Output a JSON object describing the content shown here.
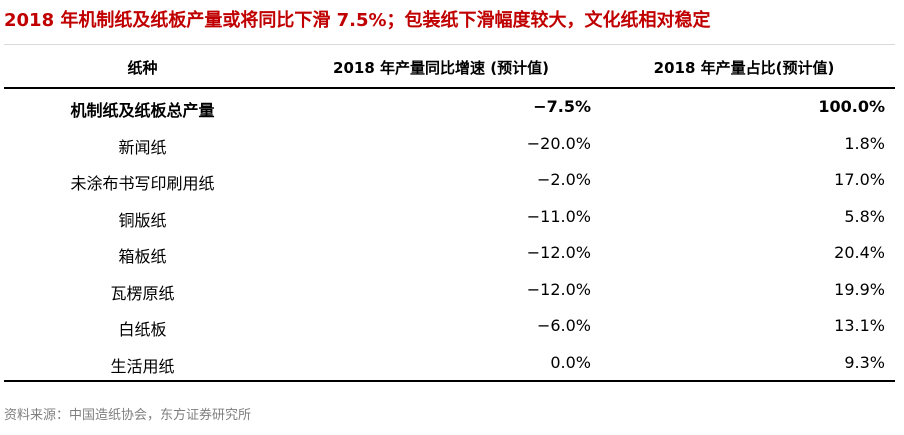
{
  "title": "2018 年机制纸及纸板产量或将同比下滑 7.5%；包装纸下滑幅度较大，文化纸相对稳定",
  "colors": {
    "title": "#c00000",
    "rule": "#000000",
    "source": "#7f7f7f"
  },
  "table": {
    "headers": {
      "name": "纸种",
      "growth": "2018 年产量同比增速 (预计值)",
      "share": "2018 年产量占比(预计值)"
    },
    "rows": [
      {
        "name": "机制纸及纸板总产量",
        "growth": "−7.5%",
        "share": "100.0%"
      },
      {
        "name": "新闻纸",
        "growth": "−20.0%",
        "share": "1.8%"
      },
      {
        "name": "未涂布书写印刷用纸",
        "growth": "−2.0%",
        "share": "17.0%"
      },
      {
        "name": "铜版纸",
        "growth": "−11.0%",
        "share": "5.8%"
      },
      {
        "name": "箱板纸",
        "growth": "−12.0%",
        "share": "20.4%"
      },
      {
        "name": "瓦楞原纸",
        "growth": "−12.0%",
        "share": "19.9%"
      },
      {
        "name": "白纸板",
        "growth": "−6.0%",
        "share": "13.1%"
      },
      {
        "name": "生活用纸",
        "growth": "0.0%",
        "share": "9.3%"
      }
    ]
  },
  "source": "资料来源：中国造纸协会，东方证券研究所"
}
